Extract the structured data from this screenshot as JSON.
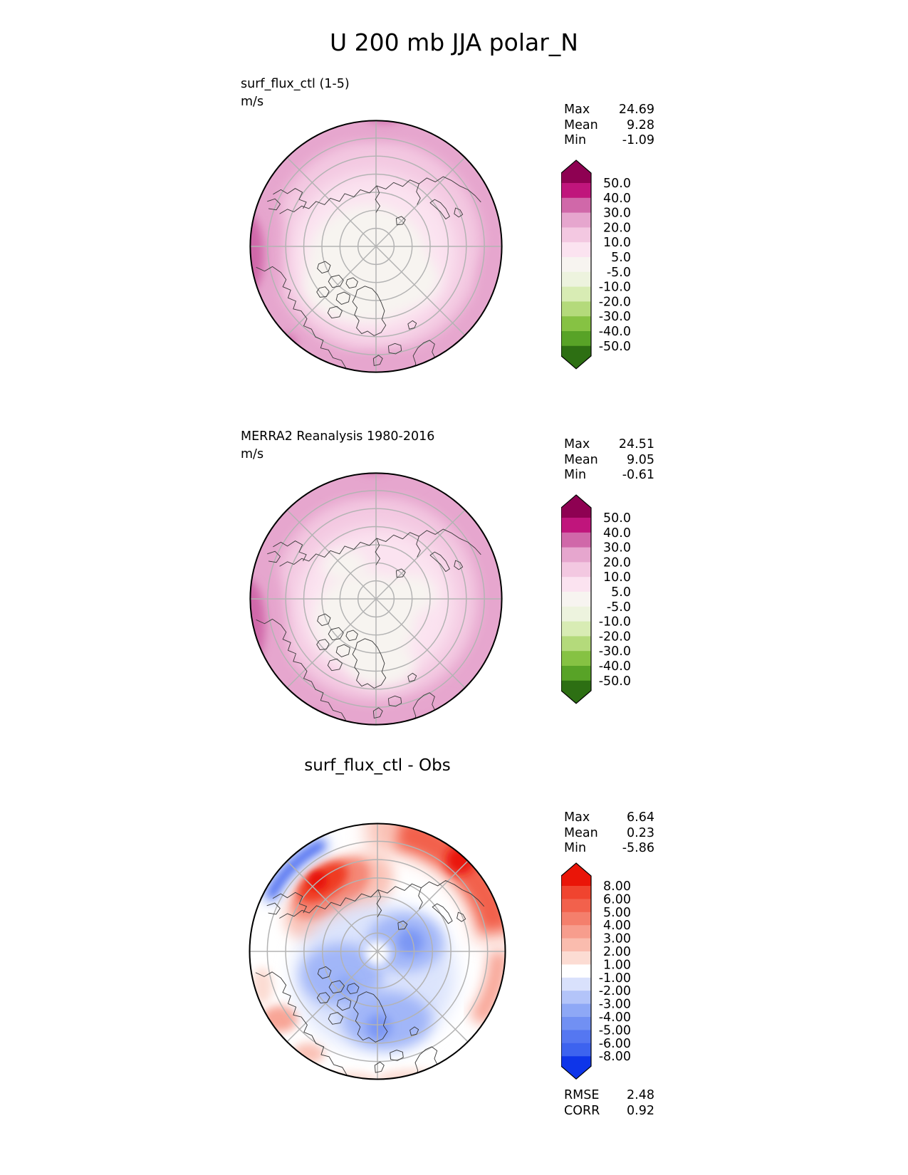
{
  "title": "U 200 mb JJA polar_N",
  "chart_data": {
    "type": "heatmap",
    "subtype": "polar_stereographic_contour_map",
    "variable": "U",
    "pressure_level": "200 mb",
    "season": "JJA",
    "region": "polar_N",
    "panels": [
      {
        "label": "surf_flux_ctl (1-5)",
        "units": "m/s",
        "stats": [
          {
            "label": "Max",
            "value": "24.69"
          },
          {
            "label": "Mean",
            "value": "9.28"
          },
          {
            "label": "Min",
            "value": "-1.09"
          }
        ],
        "colorbar": {
          "levels": [
            "50.0",
            "40.0",
            "30.0",
            "20.0",
            "10.0",
            "5.0",
            "-5.0",
            "-10.0",
            "-20.0",
            "-30.0",
            "-40.0",
            "-50.0"
          ],
          "colors": [
            "#8e0152",
            "#c0157c",
            "#d068a9",
            "#e6a6ce",
            "#f3c8e1",
            "#fbe3f0",
            "#f7f4f0",
            "#edf3de",
            "#d8ecb4",
            "#b4da7b",
            "#86c243",
            "#58a327",
            "#2d6f13"
          ]
        }
      },
      {
        "label": "MERRA2 Reanalysis 1980-2016",
        "units": "m/s",
        "stats": [
          {
            "label": "Max",
            "value": "24.51"
          },
          {
            "label": "Mean",
            "value": "9.05"
          },
          {
            "label": "Min",
            "value": "-0.61"
          }
        ],
        "colorbar": {
          "levels": [
            "50.0",
            "40.0",
            "30.0",
            "20.0",
            "10.0",
            "5.0",
            "-5.0",
            "-10.0",
            "-20.0",
            "-30.0",
            "-40.0",
            "-50.0"
          ],
          "colors": [
            "#8e0152",
            "#c0157c",
            "#d068a9",
            "#e6a6ce",
            "#f3c8e1",
            "#fbe3f0",
            "#f7f4f0",
            "#edf3de",
            "#d8ecb4",
            "#b4da7b",
            "#86c243",
            "#58a327",
            "#2d6f13"
          ]
        }
      },
      {
        "label": "surf_flux_ctl - Obs",
        "stats": [
          {
            "label": "Max",
            "value": "6.64"
          },
          {
            "label": "Mean",
            "value": "0.23"
          },
          {
            "label": "Min",
            "value": "-5.86"
          }
        ],
        "colorbar": {
          "levels": [
            "8.00",
            "6.00",
            "5.00",
            "4.00",
            "3.00",
            "2.00",
            "1.00",
            "-1.00",
            "-2.00",
            "-3.00",
            "-4.00",
            "-5.00",
            "-6.00",
            "-8.00"
          ],
          "colors": [
            "#ea1508",
            "#f0442f",
            "#f2614c",
            "#f47f6c",
            "#f79d8d",
            "#fabcae",
            "#fcdcd3",
            "#ffffff",
            "#d9e1fc",
            "#b3c4f9",
            "#8ea8f6",
            "#7190f3",
            "#5577f1",
            "#3d63ef",
            "#0e35e9"
          ]
        },
        "metrics": [
          {
            "label": "RMSE",
            "value": "2.48"
          },
          {
            "label": "CORR",
            "value": "0.92"
          }
        ]
      }
    ]
  }
}
